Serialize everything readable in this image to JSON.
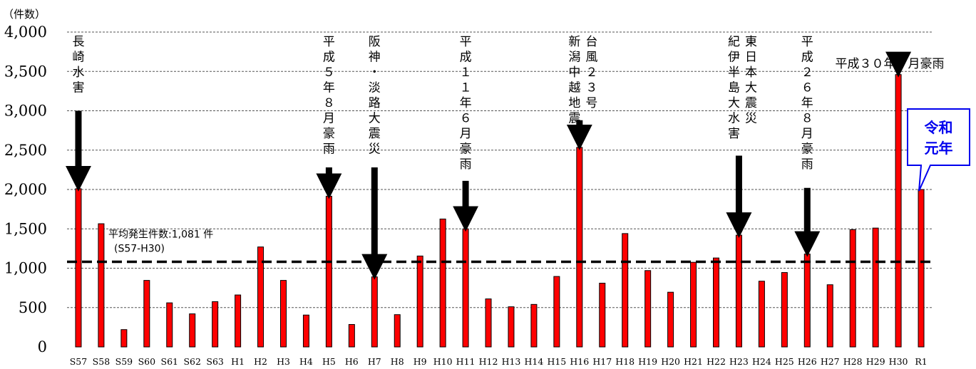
{
  "chart_data": {
    "type": "bar",
    "ylabel": "（件数）",
    "ylim": [
      0,
      4000
    ],
    "yticks": [
      "0",
      "500",
      "1,000",
      "1,500",
      "2,000",
      "2,500",
      "3,000",
      "3,500",
      "4,000"
    ],
    "grid": true,
    "categories": [
      "S57",
      "S58",
      "S59",
      "S60",
      "S61",
      "S62",
      "S63",
      "H1",
      "H2",
      "H3",
      "H4",
      "H5",
      "H6",
      "H7",
      "H8",
      "H9",
      "H10",
      "H11",
      "H12",
      "H13",
      "H14",
      "H15",
      "H16",
      "H17",
      "H18",
      "H19",
      "H20",
      "H21",
      "H22",
      "H23",
      "H24",
      "H25",
      "H26",
      "H27",
      "H28",
      "H29",
      "H30",
      "R1"
    ],
    "values": [
      2010,
      1565,
      220,
      845,
      560,
      420,
      575,
      660,
      1270,
      845,
      405,
      1915,
      285,
      890,
      410,
      1155,
      1625,
      1500,
      610,
      510,
      540,
      895,
      2535,
      810,
      1440,
      970,
      695,
      1075,
      1130,
      1420,
      835,
      945,
      1180,
      790,
      1490,
      1510,
      3460,
      2000
    ],
    "bar_color": "#ff0000",
    "average": {
      "value": 1081,
      "label": "平均発生件数:1,081 件",
      "sublabel": "(S57-H30)"
    },
    "annotations": [
      {
        "category": "S57",
        "text": "長崎水害",
        "arrow_from": 3000,
        "arrow_to": 2010
      },
      {
        "category": "H5",
        "text": "平成５年８月豪雨",
        "arrow_from": 2280,
        "arrow_to": 1915
      },
      {
        "category": "H7",
        "text": "阪神・淡路大震災",
        "arrow_from": 2280,
        "arrow_to": 890
      },
      {
        "category": "H11",
        "text": "平成１１年６月豪雨",
        "arrow_from": 2110,
        "arrow_to": 1500
      },
      {
        "category": "H16",
        "text_columns": [
          "台風２３号",
          "新潟中越地震"
        ],
        "arrow_from": 2880,
        "arrow_to": 2535
      },
      {
        "category": "H23",
        "text_columns": [
          "東日本大震災",
          "紀伊半島大水害"
        ],
        "arrow_from": 2430,
        "arrow_to": 1420
      },
      {
        "category": "H26",
        "text": "平成２６年８月豪雨",
        "arrow_from": 2020,
        "arrow_to": 1180
      },
      {
        "category": "H30",
        "text": "平成３０年７月豪雨",
        "orientation": "horizontal",
        "arrow_from": 3600,
        "arrow_to": 3460
      }
    ],
    "callout": {
      "category": "R1",
      "lines": [
        "令和",
        "元年"
      ],
      "color": "#0000ee"
    }
  }
}
